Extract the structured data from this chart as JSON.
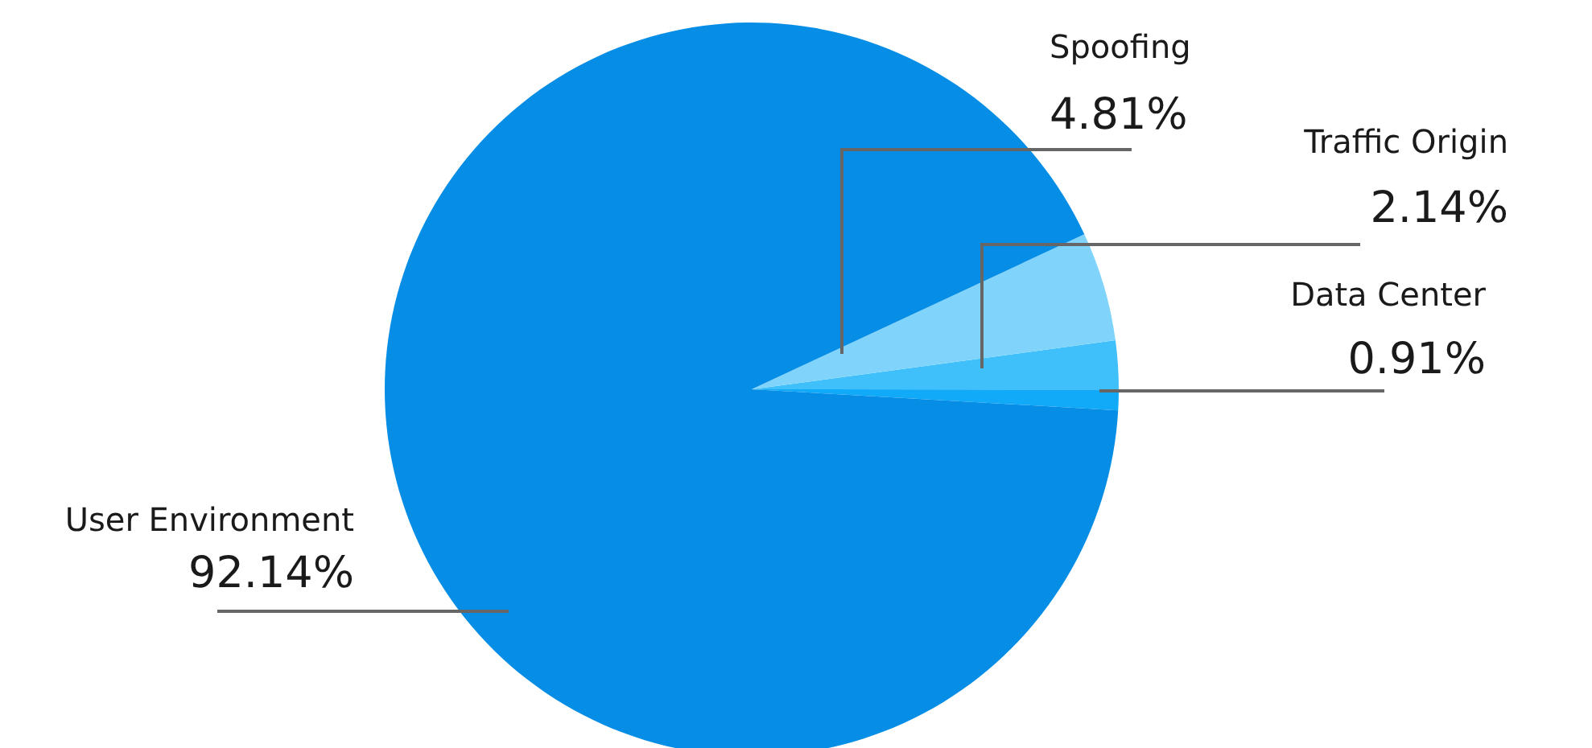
{
  "chart_data": {
    "type": "pie",
    "categories": [
      "Data Center",
      "Traffic Origin",
      "Spoofing",
      "User Environment"
    ],
    "values": [
      0.91,
      2.14,
      4.81,
      92.14
    ],
    "value_labels": [
      "0.91%",
      "2.14%",
      "4.81%",
      "92.14%"
    ],
    "colors": [
      "#10aaf8",
      "#40c0fb",
      "#80d4fb",
      "#068ee6"
    ]
  }
}
